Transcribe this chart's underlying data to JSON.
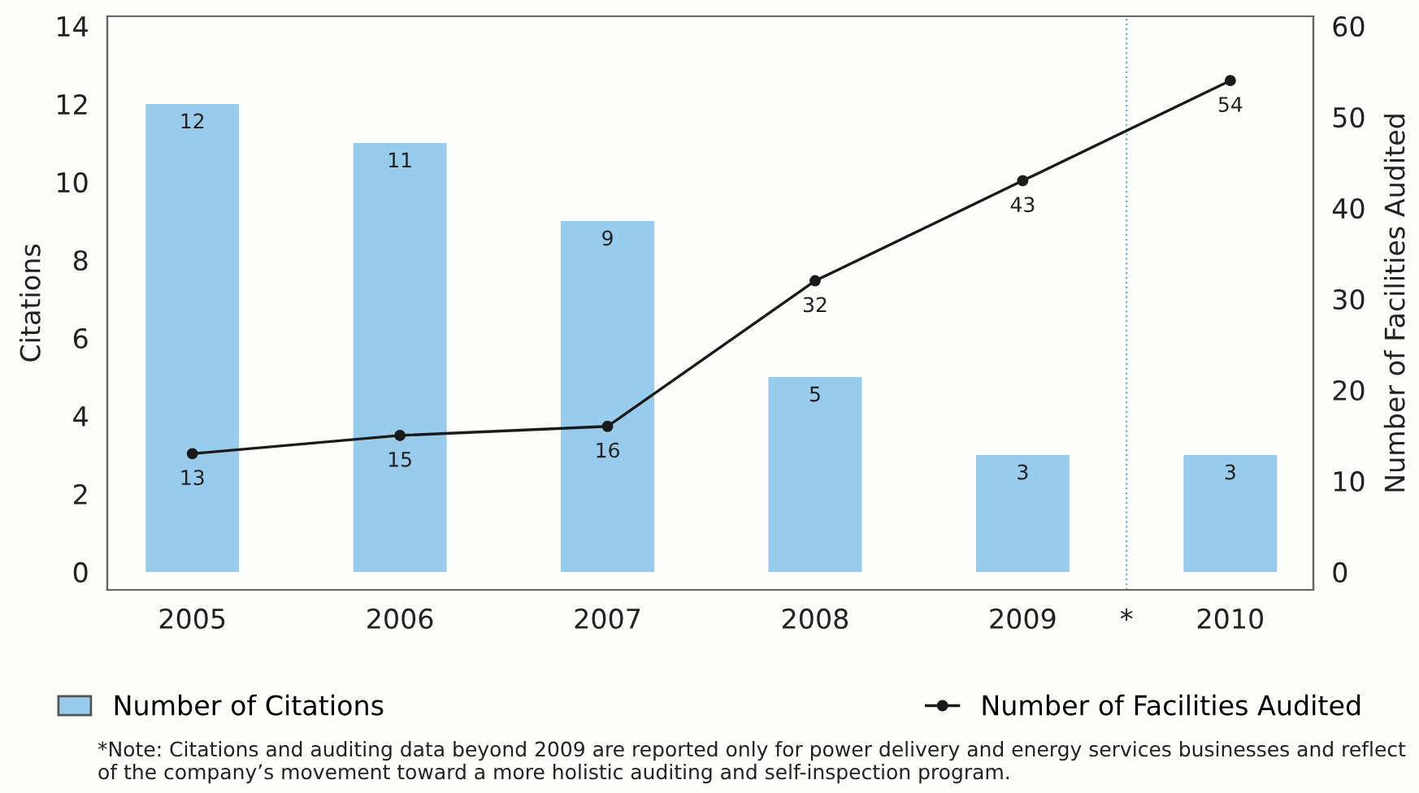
{
  "chart_data": {
    "type": "bar",
    "x": [
      2005,
      2006,
      2007,
      2008,
      2009,
      2010
    ],
    "xlim": [
      2004.59,
      2010.4
    ],
    "xticks": [
      2005,
      2006,
      2007,
      2008,
      2009,
      {
        "value": 2009.5,
        "label": "*"
      },
      2010
    ],
    "ylabel": "Citations",
    "y2label": "Number of Facilities Audited",
    "ylim": [
      -0.46,
      14.25
    ],
    "yticks": [
      0,
      2,
      4,
      6,
      8,
      10,
      12,
      14
    ],
    "y2lim": [
      -1.97,
      61.07
    ],
    "y2ticks": [
      0,
      10,
      20,
      30,
      40,
      50,
      60
    ],
    "series": [
      {
        "name": "Number of Citations",
        "color": "#99cbec",
        "values": [
          12,
          11,
          9,
          5,
          3,
          3
        ]
      },
      {
        "name": "Number of Facilities Audited",
        "type": "line",
        "axis": "y2",
        "color": "#1a1a1a",
        "marker": "circle",
        "values": [
          13,
          15,
          16,
          32,
          43,
          54
        ]
      }
    ],
    "ref_lines": [
      {
        "axis": "x",
        "value": 2009.5,
        "color": "#6aaed6",
        "line_style": "dotted"
      }
    ],
    "data_labels": true,
    "grid": false,
    "legend": "bottom",
    "annotations": [
      "*Note: Citations and auditing data beyond 2009 are reported only for power delivery and energy services businesses and reflect of the company’s movement toward a more holistic auditing and self-inspection program."
    ]
  }
}
